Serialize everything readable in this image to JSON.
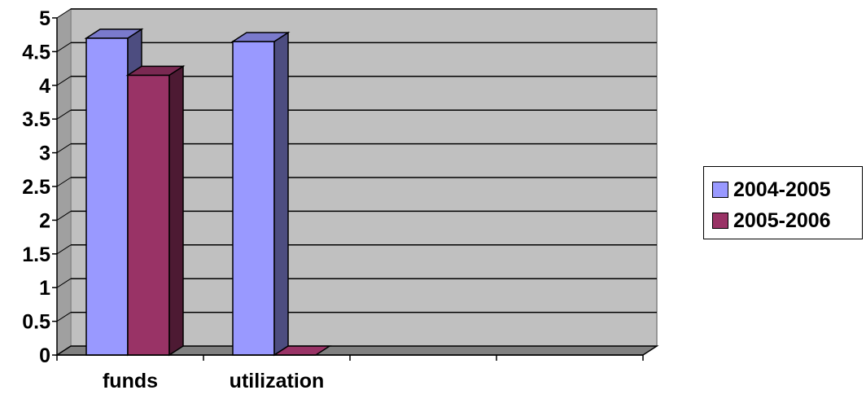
{
  "chart_data": {
    "type": "bar",
    "categories": [
      "funds",
      "utilization",
      "",
      ""
    ],
    "series": [
      {
        "name": "2004-2005",
        "values": [
          4.7,
          4.65,
          null,
          null
        ],
        "color": "#9999ff"
      },
      {
        "name": "2005-2006",
        "values": [
          4.15,
          0,
          null,
          null
        ],
        "color": "#993366"
      }
    ],
    "ylim": [
      0,
      5
    ],
    "yticks": [
      "0",
      "0.5",
      "1",
      "1.5",
      "2",
      "2.5",
      "3",
      "3.5",
      "4",
      "4.5",
      "5"
    ],
    "grid": true,
    "legend_position": "right",
    "background_color": "#c0c0c0",
    "floor_color": "#808080",
    "title": "",
    "xlabel": "",
    "ylabel": ""
  }
}
